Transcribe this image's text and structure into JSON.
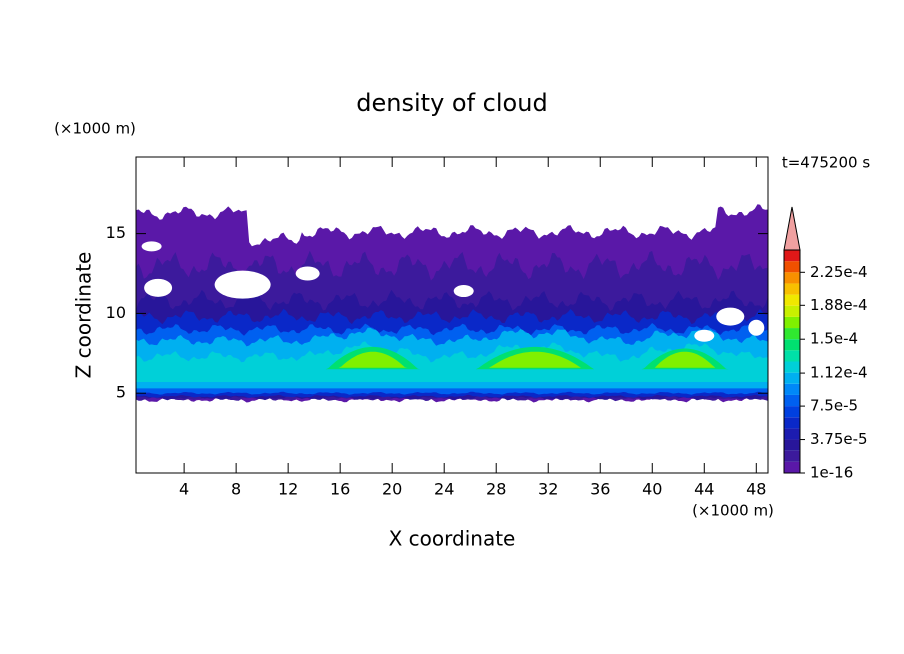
{
  "chart_data": {
    "type": "contour",
    "title": "density of cloud",
    "x_label": "X coordinate",
    "y_label": "Z coordinate",
    "x_unit": "(×1000 m)",
    "y_unit": "(×1000 m)",
    "time_label": "t=475200 s",
    "xlim": [
      0.3,
      48.9
    ],
    "xticks": [
      4,
      8,
      12,
      16,
      20,
      24,
      28,
      32,
      36,
      40,
      44,
      48
    ],
    "ylim": [
      0,
      19.8
    ],
    "yticks": [
      5,
      10,
      15
    ],
    "colorbar": {
      "clim": [
        1e-16,
        0.00025
      ],
      "colors": [
        "#5a18a8",
        "#3c1a9c",
        "#28169a",
        "#1c1cb0",
        "#0a28c8",
        "#0040e0",
        "#0060f0",
        "#0088f8",
        "#00b0f0",
        "#00d0d8",
        "#00e0a8",
        "#00e070",
        "#30e830",
        "#80f000",
        "#c8f000",
        "#f0e800",
        "#f8c000",
        "#f89000",
        "#f05000",
        "#e01818"
      ],
      "extend_color": "#f0a0a0",
      "ticks": [
        {
          "value": 1e-16,
          "label": "1e-16"
        },
        {
          "value": 3.75e-05,
          "label": "3.75e-5"
        },
        {
          "value": 7.5e-05,
          "label": "7.5e-5"
        },
        {
          "value": 0.000112,
          "label": "1.12e-4"
        },
        {
          "value": 0.00015,
          "label": "1.5e-4"
        },
        {
          "value": 0.000188,
          "label": "1.88e-4"
        },
        {
          "value": 0.000225,
          "label": "2.25e-4"
        }
      ]
    }
  }
}
